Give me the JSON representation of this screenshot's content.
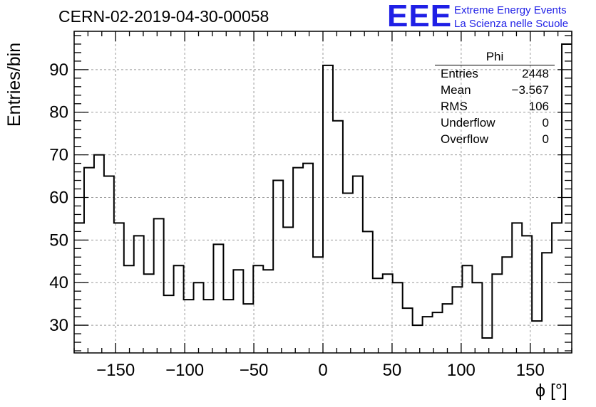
{
  "title": "CERN-02-2019-04-30-00058",
  "logo": {
    "mark": "EEE",
    "line1": "Extreme Energy Events",
    "line2": "La Scienza nelle Scuole",
    "color": "#1f1fe6"
  },
  "stats_box": {
    "title": "Phi",
    "rows": [
      {
        "label": "Entries",
        "value": "2448"
      },
      {
        "label": "Mean",
        "value": "−3.567"
      },
      {
        "label": "RMS",
        "value": "106"
      },
      {
        "label": "Underflow",
        "value": "0"
      },
      {
        "label": "Overflow",
        "value": "0"
      }
    ]
  },
  "chart_data": {
    "type": "histogram",
    "title": "CERN-02-2019-04-30-00058",
    "xlabel": "ϕ [°]",
    "ylabel": "Entries/bin",
    "xlim": [
      -180,
      180
    ],
    "ylim": [
      23.5,
      99
    ],
    "bin_width": 7.2,
    "x_ticks": [
      -150,
      -100,
      -50,
      0,
      50,
      100,
      150
    ],
    "x_tick_labels": [
      "−150",
      "−100",
      "−50",
      "0",
      "50",
      "100",
      "150"
    ],
    "y_ticks": [
      30,
      40,
      50,
      60,
      70,
      80,
      90
    ],
    "y_tick_labels": [
      "30",
      "40",
      "50",
      "60",
      "70",
      "80",
      "90"
    ],
    "grid": true,
    "line_color": "#000000",
    "values": [
      54,
      67,
      70,
      65,
      54,
      44,
      51,
      42,
      55,
      37,
      44,
      36,
      40,
      36,
      49,
      36,
      43,
      35,
      44,
      43,
      64,
      53,
      67,
      68,
      46,
      91,
      78,
      61,
      65,
      52,
      41,
      42,
      40,
      34,
      30,
      32,
      33,
      35,
      39,
      44,
      40,
      27,
      42,
      46,
      54,
      51,
      31,
      47,
      54,
      96
    ]
  }
}
